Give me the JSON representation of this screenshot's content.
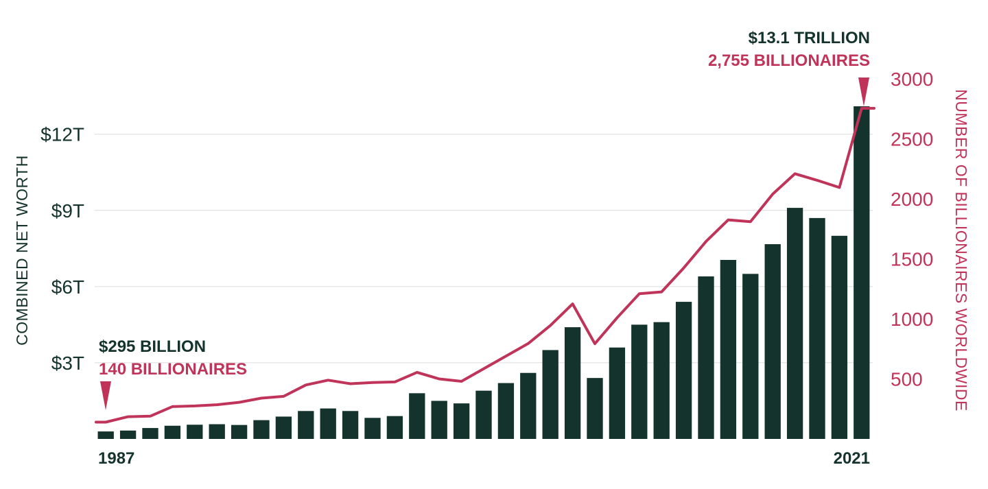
{
  "colors": {
    "bar": "#14332c",
    "line": "#c0345a",
    "grid": "#dcdcdc",
    "text_dark": "#14332c",
    "text_red": "#c0345a"
  },
  "chart_data": {
    "type": "bar",
    "title": "",
    "xlabel": "",
    "ylabel": "COMBINED NET WORTH",
    "y2label": "NUMBER OF BILLIONAIRES WORLDWIDE",
    "ylim": [
      0,
      14.18
    ],
    "y2lim": [
      0,
      3000
    ],
    "grid": true,
    "categories": [
      1987,
      1988,
      1989,
      1990,
      1991,
      1992,
      1993,
      1994,
      1995,
      1996,
      1997,
      1998,
      1999,
      2000,
      2001,
      2002,
      2003,
      2004,
      2005,
      2006,
      2007,
      2008,
      2009,
      2010,
      2011,
      2012,
      2013,
      2014,
      2015,
      2016,
      2017,
      2018,
      2019,
      2020,
      2021
    ],
    "x_tick_labels": [
      "1987",
      "2021"
    ],
    "y_tick_labels": [
      "$3T",
      "$6T",
      "$9T",
      "$12T"
    ],
    "y_tick_values": [
      3,
      6,
      9,
      12
    ],
    "y2_tick_labels": [
      "500",
      "1000",
      "1500",
      "2000",
      "2500",
      "3000"
    ],
    "y2_tick_values": [
      500,
      1000,
      1500,
      2000,
      2500,
      3000
    ],
    "series": [
      {
        "name": "Combined net worth ($T)",
        "type": "bar",
        "axis": "left",
        "values": [
          0.295,
          0.33,
          0.43,
          0.52,
          0.56,
          0.58,
          0.55,
          0.74,
          0.88,
          1.1,
          1.2,
          1.1,
          0.83,
          0.9,
          1.8,
          1.5,
          1.4,
          1.9,
          2.2,
          2.6,
          3.5,
          4.4,
          2.4,
          3.6,
          4.5,
          4.6,
          5.4,
          6.4,
          7.05,
          6.5,
          7.67,
          9.1,
          8.7,
          8.0,
          13.1
        ]
      },
      {
        "name": "Number of billionaires",
        "type": "line",
        "axis": "right",
        "values": [
          140,
          185,
          190,
          270,
          275,
          285,
          305,
          340,
          355,
          450,
          490,
          460,
          470,
          475,
          555,
          500,
          480,
          585,
          690,
          795,
          945,
          1125,
          793,
          1010,
          1210,
          1225,
          1425,
          1645,
          1825,
          1810,
          2040,
          2210,
          2155,
          2095,
          2755
        ]
      }
    ],
    "annotations": [
      {
        "line1": "$295 BILLION",
        "line2": "140 BILLIONAIRES",
        "target_index": 0
      },
      {
        "line1": "$13.1 TRILLION",
        "line2": "2,755 BILLIONAIRES",
        "target_index": 34
      }
    ]
  }
}
